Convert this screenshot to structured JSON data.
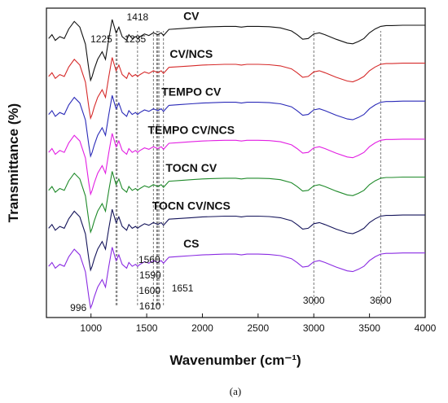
{
  "chart_data": {
    "type": "line",
    "title": "",
    "xlabel": "Wavenumber (cm⁻¹)",
    "ylabel": "Transmittance (%)",
    "xlim": [
      600,
      4000
    ],
    "x_ticks": [
      "1000",
      "1500",
      "2000",
      "2500",
      "3000",
      "3500",
      "4000"
    ],
    "x_tick_values": [
      1000,
      1500,
      2000,
      2500,
      3000,
      3500,
      4000
    ],
    "grid": false,
    "y_axis_ticks_shown": false,
    "caption": "(a)",
    "reference_lines": [
      1225,
      1235,
      1418,
      1560,
      1590,
      1600,
      1610,
      1651,
      3000,
      3600
    ],
    "peak_labels": [
      {
        "text": "1418",
        "x": 1418
      },
      {
        "text": "1225",
        "x": 1225
      },
      {
        "text": "1235",
        "x": 1235
      },
      {
        "text": "1560",
        "x": 1560
      },
      {
        "text": "1590",
        "x": 1590
      },
      {
        "text": "1600",
        "x": 1600
      },
      {
        "text": "1610",
        "x": 1610
      },
      {
        "text": "1651",
        "x": 1651
      },
      {
        "text": "996",
        "x": 996
      },
      {
        "text": "3000",
        "x": 3000
      },
      {
        "text": "3600",
        "x": 3600
      }
    ],
    "series": [
      {
        "name": "CV",
        "color": "#111111",
        "offset": 7.0
      },
      {
        "name": "CV/NCS",
        "color": "#d62a2a",
        "offset": 6.0
      },
      {
        "name": "TEMPO CV",
        "color": "#2a2ab8",
        "offset": 5.0
      },
      {
        "name": "TEMPO CV/NCS",
        "color": "#e21ee2",
        "offset": 4.0
      },
      {
        "name": "TOCN CV",
        "color": "#1f8a2a",
        "offset": 3.0
      },
      {
        "name": "TOCN CV/NCS",
        "color": "#14145a",
        "offset": 2.0
      },
      {
        "name": "CS",
        "color": "#8a2be2",
        "offset": 1.0
      }
    ],
    "shape_profile": {
      "x": [
        620,
        650,
        680,
        720,
        760,
        800,
        850,
        900,
        950,
        980,
        996,
        1010,
        1030,
        1060,
        1100,
        1130,
        1160,
        1190,
        1225,
        1250,
        1280,
        1320,
        1340,
        1370,
        1400,
        1418,
        1440,
        1480,
        1520,
        1560,
        1600,
        1630,
        1651,
        1700,
        1800,
        1900,
        2000,
        2100,
        2200,
        2300,
        2350,
        2400,
        2500,
        2600,
        2700,
        2800,
        2850,
        2900,
        2950,
        3000,
        3050,
        3100,
        3200,
        3300,
        3350,
        3400,
        3450,
        3500,
        3550,
        3600,
        3650,
        3700,
        3800,
        3900,
        4000
      ],
      "y": [
        -0.2,
        -0.1,
        -0.25,
        -0.15,
        -0.2,
        0.05,
        0.25,
        0.1,
        -0.35,
        -1.0,
        -1.3,
        -1.2,
        -1.0,
        -0.75,
        -0.55,
        -0.75,
        -0.2,
        0.3,
        -0.05,
        0.1,
        -0.15,
        -0.25,
        -0.1,
        -0.2,
        -0.15,
        -0.2,
        -0.15,
        -0.08,
        -0.12,
        -0.05,
        -0.1,
        -0.05,
        -0.12,
        0.04,
        0.06,
        0.08,
        0.1,
        0.11,
        0.12,
        0.12,
        0.1,
        0.12,
        0.12,
        0.11,
        0.08,
        0.0,
        -0.1,
        -0.22,
        -0.2,
        -0.08,
        -0.05,
        -0.1,
        -0.22,
        -0.32,
        -0.34,
        -0.28,
        -0.2,
        -0.05,
        0.05,
        0.12,
        0.14,
        0.14,
        0.15,
        0.15,
        0.15
      ]
    }
  }
}
